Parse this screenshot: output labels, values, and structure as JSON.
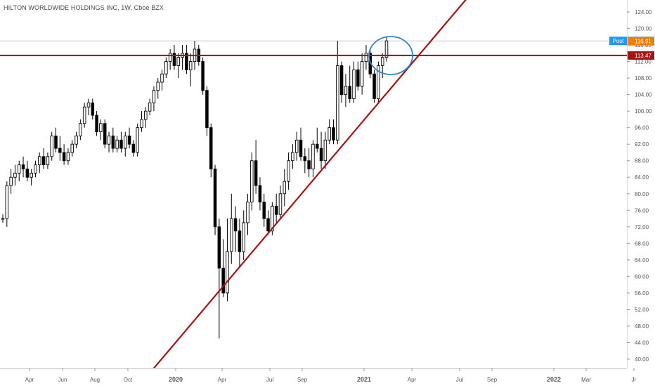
{
  "header": {
    "symbol_title": "HILTON WORLDWIDE HOLDINGS INC, 1W, Cboe BZX"
  },
  "chart_data": {
    "type": "candlestick",
    "timeframe": "1W",
    "ylim": [
      37,
      127
    ],
    "yticks": [
      "40.00",
      "44.00",
      "48.00",
      "52.00",
      "56.00",
      "60.00",
      "64.00",
      "68.00",
      "72.00",
      "76.00",
      "80.00",
      "84.00",
      "88.00",
      "92.00",
      "96.00",
      "100.00",
      "104.00",
      "108.00",
      "112.00",
      "116.00",
      "120.00",
      "124.00"
    ],
    "xticks": [
      "Apr",
      "Jun",
      "Aug",
      "Oct",
      "2020",
      "Apr",
      "Jul",
      "Sep",
      "2021",
      "Apr",
      "Jul",
      "Sep",
      "2022",
      "Mar",
      "Jr"
    ],
    "colors": {
      "candle_up": "#ffffff",
      "candle_down": "#000000",
      "candle_outline": "#000000",
      "resistance_line": "#a31515",
      "trend_line": "#a31515",
      "ellipse": "#2f86c9",
      "post_label": "#2196f3",
      "last_price_label": "#f57c00",
      "level_label": "#a31515",
      "axis_text": "#555555"
    },
    "price_labels": [
      {
        "text": "Post",
        "value": "116.99",
        "role": "post"
      },
      {
        "text": "",
        "value": "116.91",
        "role": "last"
      },
      {
        "text": "",
        "value": "113.47",
        "role": "level"
      }
    ],
    "resistance_level": 113.47,
    "trend_line": {
      "from": {
        "date": "2019-10",
        "price": 37
      },
      "to": {
        "date": "2021-09",
        "price": 127
      }
    },
    "annotations": [
      {
        "type": "ellipse",
        "around": "2021-02 breakout candles"
      }
    ],
    "candles": [
      [
        74,
        75,
        73,
        74
      ],
      [
        74,
        83,
        72,
        82
      ],
      [
        82,
        86,
        80,
        84
      ],
      [
        84,
        87,
        82,
        85
      ],
      [
        85,
        88,
        83,
        87
      ],
      [
        87,
        89,
        84,
        86
      ],
      [
        86,
        88,
        83,
        84
      ],
      [
        84,
        86,
        82,
        85
      ],
      [
        85,
        88,
        84,
        87
      ],
      [
        87,
        90,
        85,
        89
      ],
      [
        89,
        91,
        86,
        87
      ],
      [
        87,
        90,
        86,
        89
      ],
      [
        89,
        95,
        88,
        94
      ],
      [
        94,
        96,
        90,
        91
      ],
      [
        91,
        94,
        88,
        90
      ],
      [
        90,
        92,
        87,
        88
      ],
      [
        88,
        91,
        87,
        90
      ],
      [
        90,
        93,
        89,
        92
      ],
      [
        92,
        95,
        91,
        94
      ],
      [
        94,
        98,
        93,
        97
      ],
      [
        97,
        102,
        96,
        101
      ],
      [
        101,
        103,
        99,
        102
      ],
      [
        102,
        103,
        98,
        99
      ],
      [
        99,
        100,
        94,
        95
      ],
      [
        95,
        98,
        93,
        97
      ],
      [
        97,
        98,
        91,
        92
      ],
      [
        92,
        95,
        90,
        94
      ],
      [
        94,
        96,
        90,
        91
      ],
      [
        91,
        94,
        90,
        93
      ],
      [
        93,
        95,
        90,
        91
      ],
      [
        91,
        95,
        89,
        94
      ],
      [
        94,
        96,
        91,
        92
      ],
      [
        92,
        93,
        89,
        90
      ],
      [
        90,
        97,
        89,
        96
      ],
      [
        96,
        100,
        95,
        98
      ],
      [
        98,
        101,
        96,
        100
      ],
      [
        100,
        103,
        99,
        102
      ],
      [
        102,
        106,
        100,
        105
      ],
      [
        105,
        108,
        103,
        107
      ],
      [
        107,
        110,
        105,
        109
      ],
      [
        109,
        113,
        108,
        112
      ],
      [
        112,
        115,
        110,
        114
      ],
      [
        114,
        116,
        110,
        111
      ],
      [
        111,
        114,
        108,
        113
      ],
      [
        113,
        116,
        110,
        114
      ],
      [
        114,
        116,
        109,
        110
      ],
      [
        110,
        114,
        106,
        112
      ],
      [
        112,
        117,
        110,
        115
      ],
      [
        115,
        116,
        111,
        112
      ],
      [
        112,
        113,
        104,
        105
      ],
      [
        105,
        106,
        94,
        96
      ],
      [
        96,
        97,
        84,
        86
      ],
      [
        86,
        87,
        70,
        72
      ],
      [
        72,
        74,
        45,
        62
      ],
      [
        62,
        69,
        55,
        56
      ],
      [
        56,
        74,
        54,
        66
      ],
      [
        66,
        80,
        63,
        74
      ],
      [
        74,
        77,
        66,
        71
      ],
      [
        71,
        74,
        62,
        66
      ],
      [
        66,
        76,
        64,
        73
      ],
      [
        73,
        80,
        70,
        78
      ],
      [
        78,
        90,
        76,
        88
      ],
      [
        88,
        93,
        80,
        82
      ],
      [
        82,
        84,
        76,
        78
      ],
      [
        78,
        80,
        72,
        74
      ],
      [
        74,
        76,
        70,
        71
      ],
      [
        71,
        78,
        70,
        77
      ],
      [
        77,
        80,
        73,
        75
      ],
      [
        75,
        82,
        74,
        80
      ],
      [
        80,
        86,
        77,
        83
      ],
      [
        83,
        90,
        81,
        88
      ],
      [
        88,
        92,
        86,
        90
      ],
      [
        90,
        95,
        88,
        93
      ],
      [
        93,
        96,
        88,
        89
      ],
      [
        89,
        91,
        85,
        88
      ],
      [
        88,
        91,
        84,
        86
      ],
      [
        86,
        93,
        84,
        92
      ],
      [
        92,
        96,
        90,
        91
      ],
      [
        91,
        95,
        86,
        88
      ],
      [
        88,
        95,
        86,
        93
      ],
      [
        93,
        98,
        92,
        96
      ],
      [
        96,
        98,
        92,
        93
      ],
      [
        93,
        117,
        92,
        111
      ],
      [
        111,
        112,
        102,
        104
      ],
      [
        104,
        109,
        101,
        106
      ],
      [
        106,
        111,
        102,
        103
      ],
      [
        103,
        112,
        102,
        110
      ],
      [
        110,
        112,
        105,
        106
      ],
      [
        106,
        114,
        104,
        112
      ],
      [
        112,
        116,
        110,
        114
      ],
      [
        114,
        115,
        108,
        109
      ],
      [
        109,
        110,
        102,
        103
      ],
      [
        103,
        112,
        102,
        111
      ],
      [
        111,
        114,
        108,
        113
      ],
      [
        113,
        118,
        112,
        117
      ]
    ]
  }
}
